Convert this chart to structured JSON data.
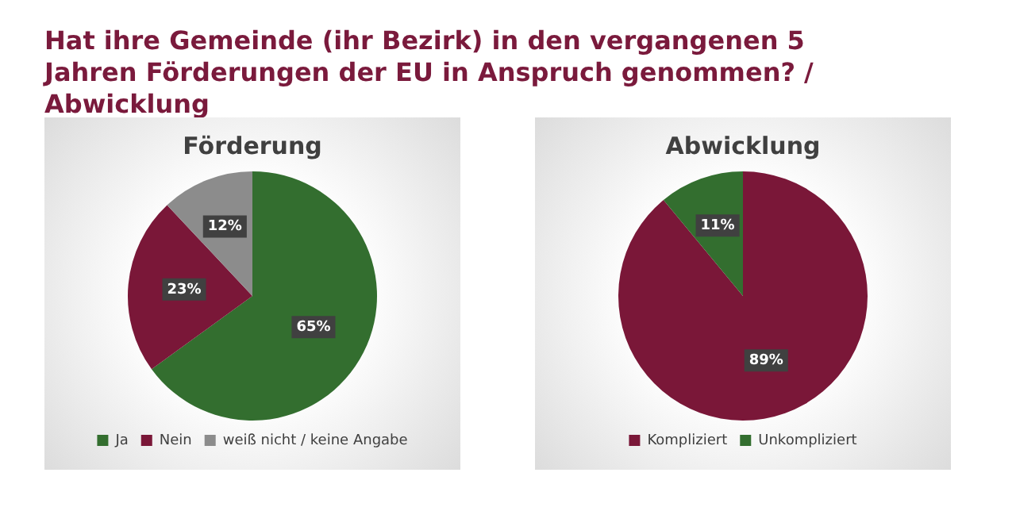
{
  "chart_data": [
    {
      "type": "pie",
      "title": "Förderung",
      "annotations": [
        "Hat ihre Gemeinde (ihr Bezirk) in den vergangenen 5 Jahren Förderungen der EU in Anspruch genommen? / Abwicklung"
      ],
      "categories": [
        "Ja",
        "Nein",
        "weiß nicht / keine Angabe"
      ],
      "values": [
        65,
        23,
        12
      ],
      "colors": [
        "#336e2f",
        "#7a1738",
        "#8c8c8c"
      ],
      "value_labels": [
        "65%",
        "23%",
        "12%"
      ],
      "legend": "bottom"
    },
    {
      "type": "pie",
      "title": "Abwicklung",
      "categories": [
        "Kompliziert",
        "Unkompliziert"
      ],
      "values": [
        89,
        11
      ],
      "colors": [
        "#7a1738",
        "#336e2f"
      ],
      "value_labels": [
        "89%",
        "11%"
      ],
      "legend": "bottom"
    }
  ]
}
